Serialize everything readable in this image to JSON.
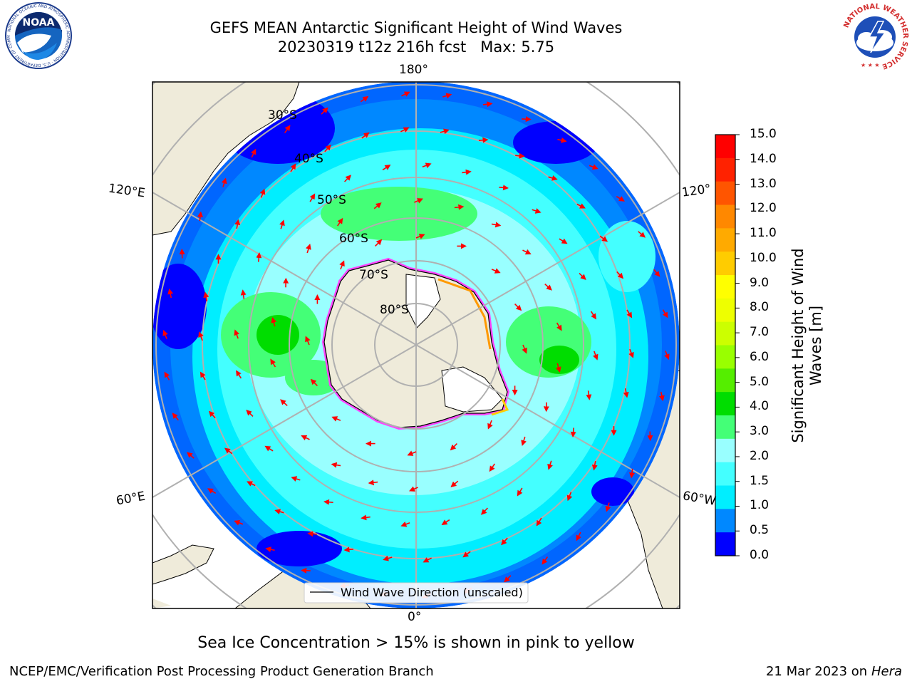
{
  "header": {
    "title_line1": "GEFS MEAN Antarctic Significant Height of Wind Waves",
    "title_line2": "20230319 t12z 216h fcst   Max: 5.75"
  },
  "logos": {
    "left": {
      "name": "noaa-logo",
      "text": "NOAA",
      "ring_text": "NATIONAL OCEANIC AND ATMOSPHERIC ADMINISTRATION · U.S. DEPARTMENT OF COMMERCE"
    },
    "right": {
      "name": "nws-logo",
      "ring_text": "NATIONAL WEATHER SERVICE"
    }
  },
  "map": {
    "projection": "south-polar-stereographic",
    "longitude_labels": {
      "top": "180°",
      "bottom": "0°",
      "upper_left": "120°E",
      "lower_left": "60°E",
      "upper_right": "120°",
      "lower_right": "60°W"
    },
    "latitude_labels": [
      "30°S",
      "40°S",
      "50°S",
      "60°S",
      "70°S",
      "80°S"
    ],
    "legend_label": "Wind Wave Direction (unscaled)",
    "colors": {
      "land": "#efebda",
      "ice": "#ffffff",
      "sea_ice_edge": [
        "#ff44ff",
        "#ff9900",
        "#ffff00"
      ]
    }
  },
  "colorbar": {
    "label": "Significant Height of Wind Waves [m]",
    "label_line1": "Significant Height of Wind",
    "label_line2": "Waves [m]",
    "ticks": [
      "15.0",
      "14.0",
      "13.0",
      "12.0",
      "11.0",
      "10.0",
      "9.0",
      "8.0",
      "7.0",
      "6.0",
      "5.0",
      "4.0",
      "3.0",
      "2.0",
      "1.5",
      "1.0",
      "0.5",
      "0.0"
    ],
    "colors_top_to_bottom": [
      "#ff0000",
      "#ff2200",
      "#ff5500",
      "#ff8800",
      "#ffaa00",
      "#ffcc00",
      "#ffff00",
      "#eeff00",
      "#ccff00",
      "#99ff00",
      "#55ee00",
      "#00dd00",
      "#44ff77",
      "#99ffff",
      "#44ffff",
      "#00eeff",
      "#0088ff",
      "#0000ff"
    ]
  },
  "caption": "Sea Ice Concentration > 15% is shown in pink to yellow",
  "footer": {
    "left": "NCEP/EMC/Verification Post Processing Product Generation Branch",
    "right_date": "21 Mar 2023 on",
    "right_host": "Hera"
  }
}
